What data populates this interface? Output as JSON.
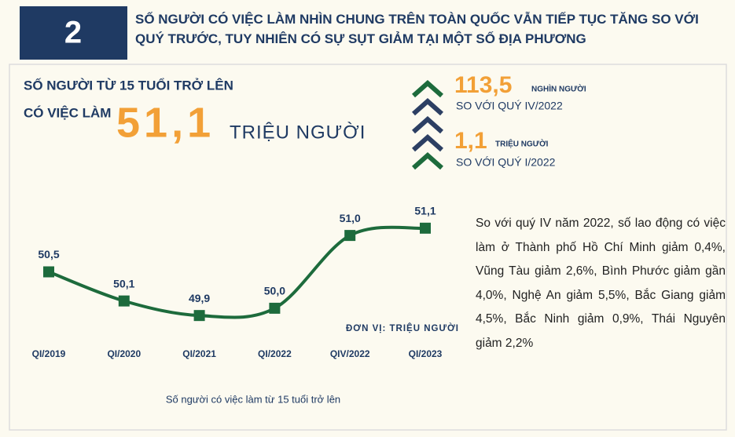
{
  "header": {
    "number": "2",
    "title": "SỐ NGƯỜI CÓ VIỆC LÀM NHÌN CHUNG TRÊN TOÀN QUỐC VẪN TIẾP TỤC TĂNG SO VỚI QUÝ TRƯỚC, TUY NHIÊN CÓ SỰ SỤT GIẢM TẠI MỘT SỐ ĐỊA PHƯƠNG"
  },
  "headline": {
    "label_line1": "SỐ NGƯỜI TỪ 15 TUỔI TRỞ LÊN",
    "label_line2": "CÓ VIỆC LÀM",
    "value": "51,1",
    "unit": "TRIỆU NGƯỜI"
  },
  "changes": [
    {
      "value": "113,5",
      "unit": "NGHÌN NGƯỜI",
      "compare": "SO VỚI QUÝ IV/2022"
    },
    {
      "value": "1,1",
      "unit": "TRIỆU NGƯỜI",
      "compare": "SO VỚI QUÝ I/2022"
    }
  ],
  "note": "So với quý IV năm 2022, số lao động có việc làm ở Thành phố Hồ Chí Minh giảm 0,4%, Vũng Tàu giảm 2,6%, Bình Phước giảm gần 4,0%, Nghệ An giảm 5,5%, Bắc Giang giảm 4,5%, Bắc Ninh giảm 0,9%, Thái Nguyên giảm 2,2%",
  "chart_data": {
    "type": "line",
    "caption": "Số người có việc làm từ 15 tuổi trở lên",
    "unit_note": "ĐƠN VỊ: TRIỆU NGƯỜI",
    "categories": [
      "QI/2019",
      "QI/2020",
      "QI/2021",
      "QI/2022",
      "QIV/2022",
      "QI/2023"
    ],
    "values": [
      50.5,
      50.1,
      49.9,
      50.0,
      51.0,
      51.1
    ],
    "value_labels": [
      "50,5",
      "50,1",
      "49,9",
      "50,0",
      "51,0",
      "51,1"
    ],
    "color": "#1d6b3c",
    "ylim": [
      49.6,
      51.4
    ]
  }
}
